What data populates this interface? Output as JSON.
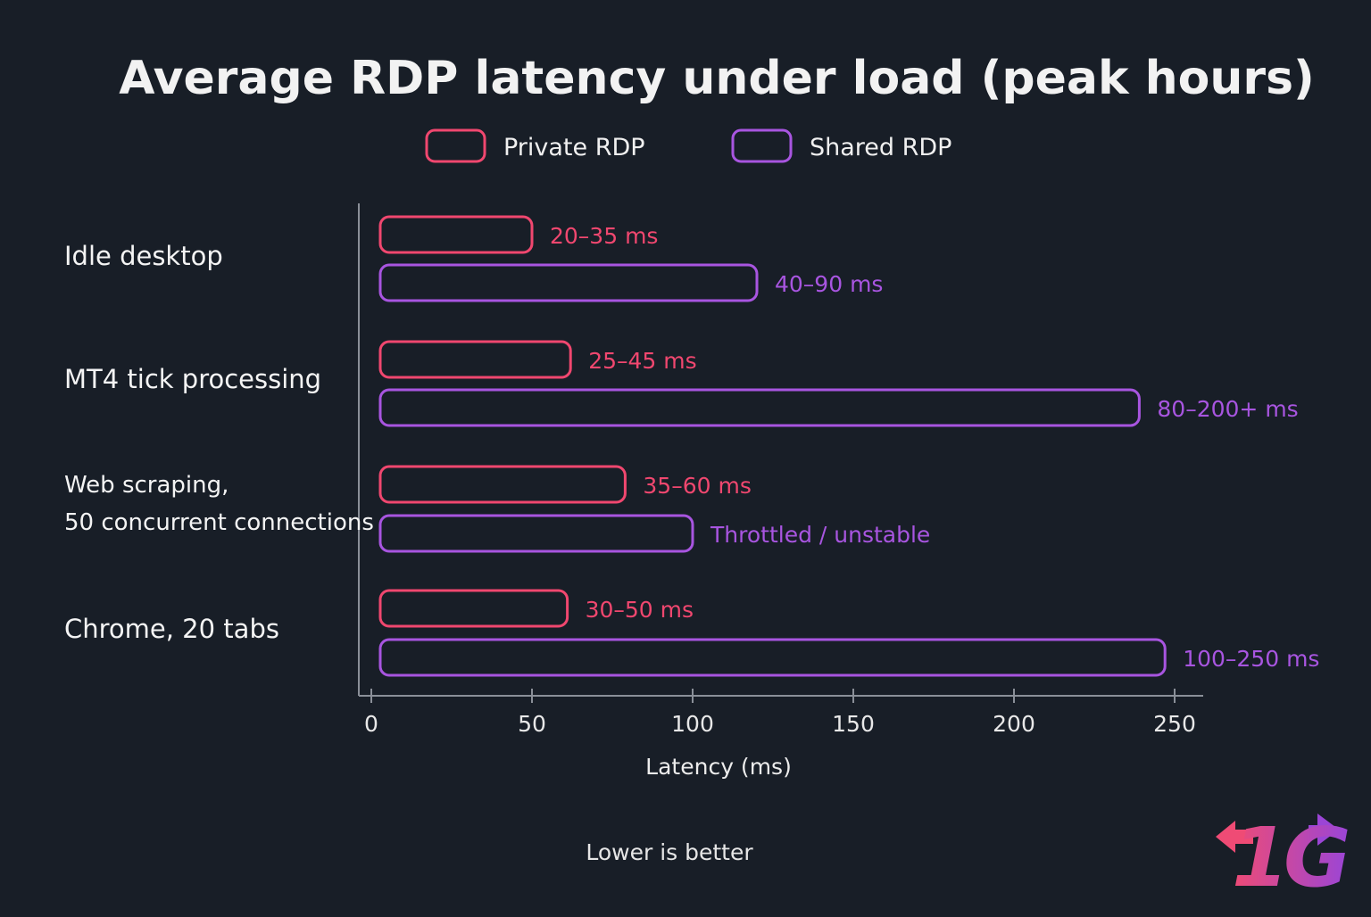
{
  "chart_data": {
    "type": "bar",
    "orientation": "horizontal",
    "title": "Average RDP latency under load (peak hours)",
    "xlabel": "Latency (ms)",
    "ylabel": "",
    "xlim": [
      0,
      250
    ],
    "xticks": [
      "0",
      "50",
      "100",
      "150",
      "200",
      "250"
    ],
    "grid": false,
    "legend_placement": "top",
    "categories": [
      [
        "Idle desktop"
      ],
      [
        "MT4 tick processing"
      ],
      [
        "Web scraping,",
        "50 concurrent connections"
      ],
      [
        "Chrome, 20 tabs"
      ]
    ],
    "series": [
      {
        "name": "Private RDP",
        "color": "#f0476f",
        "values": [
          50,
          62,
          79,
          61
        ],
        "labels": [
          "20–35 ms",
          "25–45 ms",
          "35–60 ms",
          "30–50 ms"
        ]
      },
      {
        "name": "Shared RDP",
        "color": "#a855e0",
        "values": [
          120,
          239,
          100,
          247
        ],
        "labels": [
          "40–90 ms",
          "80–200+ ms",
          "Throttled / unstable",
          "100–250 ms"
        ]
      }
    ],
    "footnote": "Lower is better"
  },
  "logo": {
    "text": "1G",
    "colors": [
      "#ef4b75",
      "#9b45d6"
    ]
  }
}
